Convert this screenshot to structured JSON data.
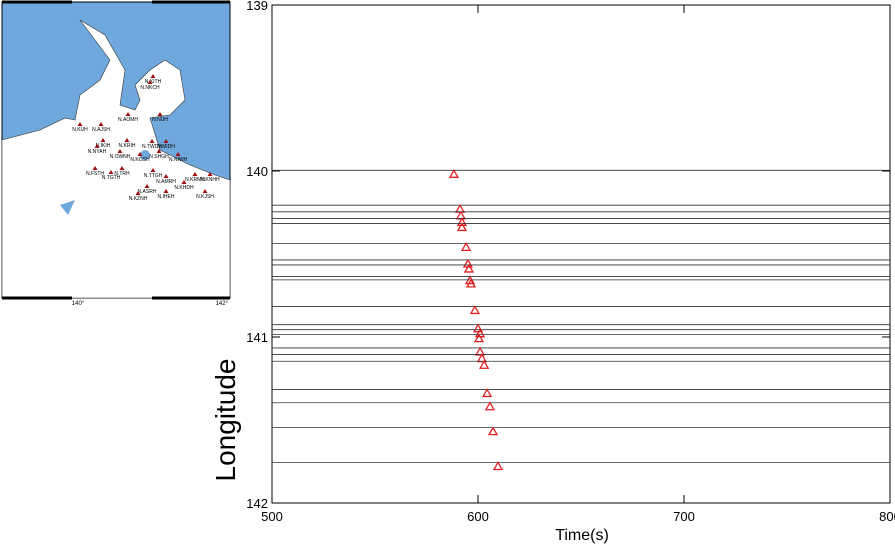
{
  "chart_data": {
    "type": "scatter",
    "xlabel": "Time(s)",
    "ylabel": "Longitude",
    "xlim": [
      500,
      800
    ],
    "ylim": [
      139,
      142
    ],
    "y_inverted": true,
    "xticks": [
      500,
      600,
      700,
      800
    ],
    "yticks": [
      139,
      140,
      141,
      142
    ],
    "series": [
      {
        "color": "#e02020",
        "x": [
          588.3,
          591.3,
          591.7,
          592.2,
          592.2,
          594.2,
          595.1,
          595.6,
          596.1,
          596.6,
          598.5,
          600.0,
          601.0,
          600.5,
          601.0,
          601.9,
          603.0,
          604.4,
          605.8,
          607.3,
          609.7
        ],
        "values": [
          140.02,
          140.23,
          140.27,
          140.31,
          140.34,
          140.46,
          140.56,
          140.59,
          140.66,
          140.68,
          140.84,
          140.95,
          140.98,
          141.01,
          141.09,
          141.13,
          141.17,
          141.34,
          141.42,
          141.57,
          141.78
        ]
      }
    ],
    "map": {
      "x_labels": [
        "140°",
        "142°"
      ],
      "stations": [
        "N.KITH",
        "N.NKCH",
        "N.KUH",
        "N.AJSH",
        "N.AOMH",
        "N.NUH",
        "N.IKIH",
        "N.KRIH",
        "N.NYAH",
        "N.TWDH",
        "N.MIDH",
        "N.OWNH",
        "N.KOSH",
        "N.SHGH",
        "N.NIWH",
        "N.FSTH",
        "N.TRH",
        "N.TGTH",
        "N.TTGH",
        "N.KRMH",
        "N.KNHH",
        "N.AMRH",
        "N.KHDH",
        "N.ASRH",
        "N.KZNH",
        "N.IHEH",
        "N.KJSH"
      ]
    }
  }
}
